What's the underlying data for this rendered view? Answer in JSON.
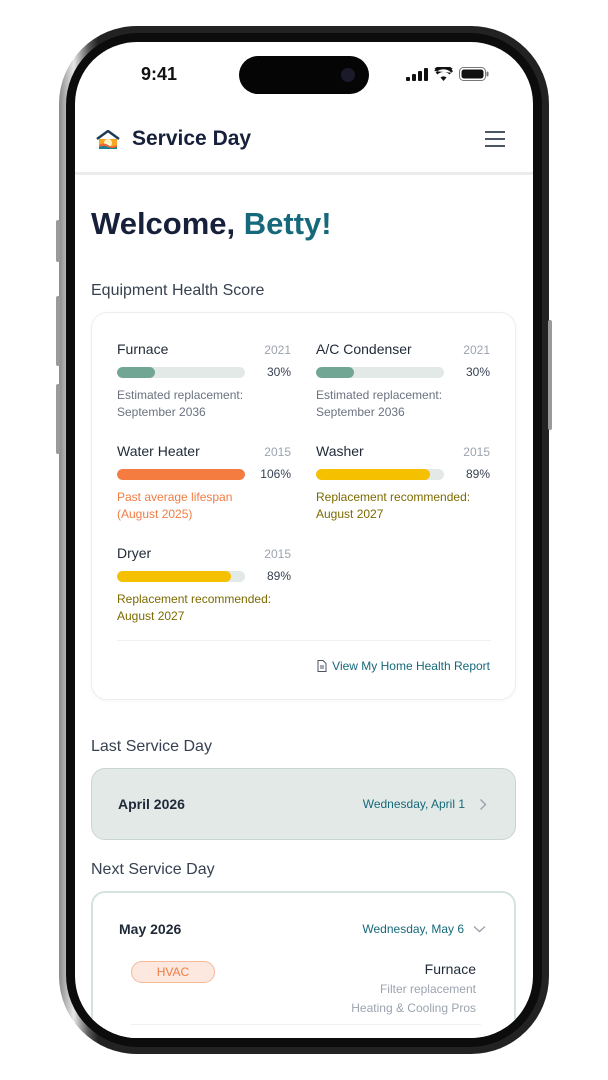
{
  "status_bar": {
    "time": "9:41"
  },
  "header": {
    "title": "Service Day",
    "logo": "house-sunrise-logo",
    "menu_icon": "hamburger-icon"
  },
  "welcome": {
    "greeting": "Welcome,",
    "name": "Betty!"
  },
  "health": {
    "title": "Equipment Health Score",
    "items": [
      {
        "name": "Furnace",
        "year": "2021",
        "percent": 30,
        "percent_label": "30%",
        "note": "Estimated replacement:",
        "note2": "September 2036",
        "color": "#72a694",
        "note_color": "#6b7280"
      },
      {
        "name": "A/C Condenser",
        "year": "2021",
        "percent": 30,
        "percent_label": "30%",
        "note": "Estimated replacement:",
        "note2": "September 2036",
        "color": "#72a694",
        "note_color": "#6b7280"
      },
      {
        "name": "Water Heater",
        "year": "2015",
        "percent": 106,
        "percent_label": "106%",
        "note": "Past average lifespan",
        "note2": "(August 2025)",
        "color": "#f47c40",
        "note_color": "#f07c44"
      },
      {
        "name": "Washer",
        "year": "2015",
        "percent": 89,
        "percent_label": "89%",
        "note": "Replacement recommended:",
        "note2": "August 2027",
        "color": "#f5c000",
        "note_color": "#7d6a00"
      },
      {
        "name": "Dryer",
        "year": "2015",
        "percent": 89,
        "percent_label": "89%",
        "note": "Replacement recommended:",
        "note2": "August 2027",
        "color": "#f5c000",
        "note_color": "#7d6a00"
      }
    ],
    "report_link": "View My Home Health Report"
  },
  "last_service": {
    "title": "Last Service Day",
    "month": "April 2026",
    "date": "Wednesday, April 1"
  },
  "next_service": {
    "title": "Next Service Day",
    "month": "May 2026",
    "date": "Wednesday, May 6",
    "tag": "HVAC",
    "equipment": "Furnace",
    "task": "Filter replacement",
    "provider": "Heating & Cooling Pros"
  }
}
